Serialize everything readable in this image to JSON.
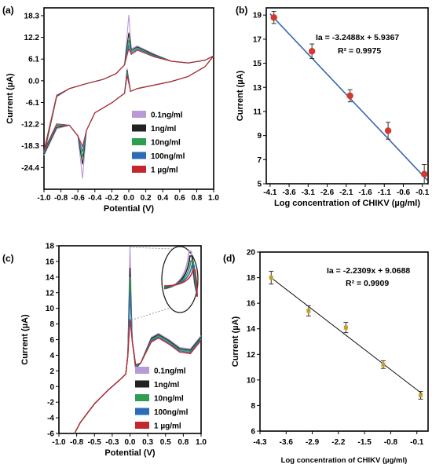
{
  "chart_data": [
    {
      "type": "line",
      "panel_label": "(a)",
      "xlabel": "Potential (V)",
      "ylabel": "Current (µA)",
      "xlim": [
        -1.0,
        1.0
      ],
      "ylim": [
        -30.5,
        20.5
      ],
      "xticks": [
        "-1.0",
        "-0.8",
        "-0.6",
        "-0.4",
        "-0.2",
        "0.0",
        "0.2",
        "0.4",
        "0.6",
        "0.8",
        "1.0"
      ],
      "yticks": [
        "18.3",
        "12.2",
        "6.1",
        "0.0",
        "-6.1",
        "-12.2",
        "-18.3",
        "-24.4"
      ],
      "legend": [
        "0.1ng/ml",
        "1ng/ml",
        "10ng/ml",
        "100ng/ml",
        "1 µg/ml"
      ],
      "legend_position": "lower-right",
      "series": [
        {
          "name": "0.1ng/ml",
          "color": "#b89ad8",
          "peak_anodic": 18.5,
          "peak_cathodic": -27.5
        },
        {
          "name": "1ng/ml",
          "color": "#222222",
          "peak_anodic": 13.5,
          "peak_cathodic": -23.5
        },
        {
          "name": "10ng/ml",
          "color": "#2e9e50",
          "peak_anodic": 11.5,
          "peak_cathodic": -21.5
        },
        {
          "name": "100ng/ml",
          "color": "#2c6cb5",
          "peak_anodic": 10.0,
          "peak_cathodic": -20.0
        },
        {
          "name": "1 µg/ml",
          "color": "#c4282c",
          "peak_anodic": 9.0,
          "peak_cathodic": -18.5
        }
      ]
    },
    {
      "type": "scatter",
      "panel_label": "(b)",
      "xlabel": "Log concentration of CHIKV (µg/ml)",
      "ylabel": "Current (µA)",
      "xlim": [
        -4.2,
        0.05
      ],
      "ylim": [
        5,
        19.6
      ],
      "xticks": [
        "-4.1",
        "-3.6",
        "-3.1",
        "-2.6",
        "-2.1",
        "-1.6",
        "-1.1",
        "-0.6",
        "-0.1"
      ],
      "yticks": [
        "5",
        "7",
        "9",
        "11",
        "13",
        "15",
        "17",
        "19"
      ],
      "x": [
        -4.0,
        -3.0,
        -2.0,
        -1.0,
        -0.05
      ],
      "y": [
        18.8,
        16.0,
        12.3,
        9.4,
        5.8
      ],
      "yerr": [
        0.5,
        0.6,
        0.5,
        0.7,
        0.8
      ],
      "point_color": "#d03a2c",
      "fit_color": "#3a68b0",
      "fit": {
        "slope": -3.2488,
        "intercept": 5.9367
      },
      "annotations": [
        "Ia = -3.2488x + 5.9367",
        "R² = 0.9975"
      ]
    },
    {
      "type": "line",
      "panel_label": "(c)",
      "xlabel": "Potential (V)",
      "ylabel": "Current (µA)",
      "xlim": [
        -1.0,
        1.0
      ],
      "ylim": [
        -6,
        18
      ],
      "xticks": [
        "-1.0",
        "-0.8",
        "-0.5",
        "-0.3",
        "0.0",
        "0.3",
        "0.5",
        "0.8",
        "1.0"
      ],
      "yticks": [
        "-6",
        "-4",
        "-2",
        "0",
        "2",
        "4",
        "6",
        "8",
        "10",
        "12",
        "14",
        "16",
        "18"
      ],
      "legend": [
        "0.1ng/ml",
        "1ng/ml",
        "10ng/ml",
        "100ng/ml",
        "1 µg/ml"
      ],
      "legend_position": "lower-right",
      "series": [
        {
          "name": "0.1ng/ml",
          "color": "#b89ad8",
          "peak": 17.8
        },
        {
          "name": "1ng/ml",
          "color": "#222222",
          "peak": 15.2
        },
        {
          "name": "10ng/ml",
          "color": "#2e9e50",
          "peak": 14.0
        },
        {
          "name": "100ng/ml",
          "color": "#2c6cb5",
          "peak": 12.0
        },
        {
          "name": "1 µg/ml",
          "color": "#c4282c",
          "peak": 8.6
        }
      ]
    },
    {
      "type": "scatter",
      "panel_label": "(d)",
      "xlabel": "Log concentration of CHIKV (µg/ml)",
      "ylabel": "Current (µA)",
      "xlim": [
        -4.3,
        0.2
      ],
      "ylim": [
        6,
        20
      ],
      "xticks": [
        "-4.3",
        "-3.6",
        "-2.9",
        "-2.2",
        "-1.5",
        "-0.8",
        "-0.1"
      ],
      "yticks": [
        "6",
        "8",
        "10",
        "12",
        "14",
        "16",
        "18",
        "20"
      ],
      "x": [
        -4.0,
        -3.0,
        -2.0,
        -1.0,
        0.0
      ],
      "y": [
        18.0,
        15.4,
        14.1,
        11.2,
        8.8
      ],
      "yerr": [
        0.5,
        0.4,
        0.4,
        0.3,
        0.3
      ],
      "point_color": "#c8a020",
      "fit_color": "#111111",
      "fit": {
        "slope": -2.2309,
        "intercept": 9.0688
      },
      "annotations": [
        "Ia = -2.2309x + 9.0688",
        "R² = 0.9909"
      ]
    }
  ]
}
